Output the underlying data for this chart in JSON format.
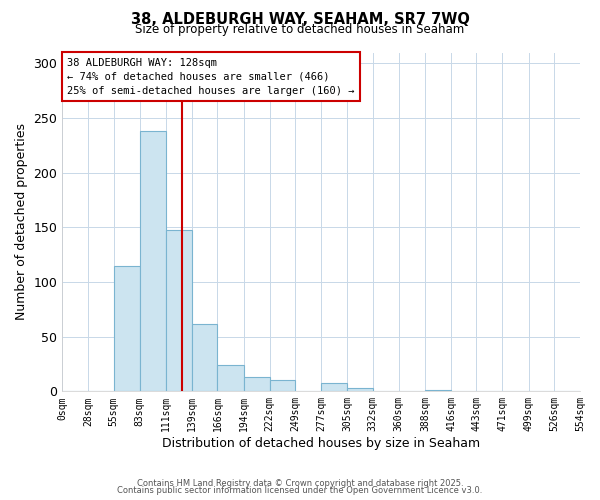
{
  "title": "38, ALDEBURGH WAY, SEAHAM, SR7 7WQ",
  "subtitle": "Size of property relative to detached houses in Seaham",
  "xlabel": "Distribution of detached houses by size in Seaham",
  "ylabel": "Number of detached properties",
  "bin_edges": [
    0,
    28,
    55,
    83,
    111,
    139,
    166,
    194,
    222,
    249,
    277,
    305,
    332,
    360,
    388,
    416,
    443,
    471,
    499,
    526,
    554
  ],
  "bin_labels": [
    "0sqm",
    "28sqm",
    "55sqm",
    "83sqm",
    "111sqm",
    "139sqm",
    "166sqm",
    "194sqm",
    "222sqm",
    "249sqm",
    "277sqm",
    "305sqm",
    "332sqm",
    "360sqm",
    "388sqm",
    "416sqm",
    "443sqm",
    "471sqm",
    "499sqm",
    "526sqm",
    "554sqm"
  ],
  "bar_heights": [
    0,
    0,
    115,
    238,
    148,
    62,
    24,
    13,
    10,
    0,
    8,
    3,
    0,
    0,
    1,
    0,
    0,
    0,
    0,
    0
  ],
  "bar_color": "#cce4f0",
  "bar_edge_color": "#7ab4d0",
  "vline_x": 128,
  "vline_color": "#cc0000",
  "ylim": [
    0,
    310
  ],
  "yticks": [
    0,
    50,
    100,
    150,
    200,
    250,
    300
  ],
  "annotation_box_text": "38 ALDEBURGH WAY: 128sqm\n← 74% of detached houses are smaller (466)\n25% of semi-detached houses are larger (160) →",
  "footer_line1": "Contains HM Land Registry data © Crown copyright and database right 2025.",
  "footer_line2": "Contains public sector information licensed under the Open Government Licence v3.0.",
  "bg_color": "#ffffff",
  "grid_color": "#c8d8e8"
}
